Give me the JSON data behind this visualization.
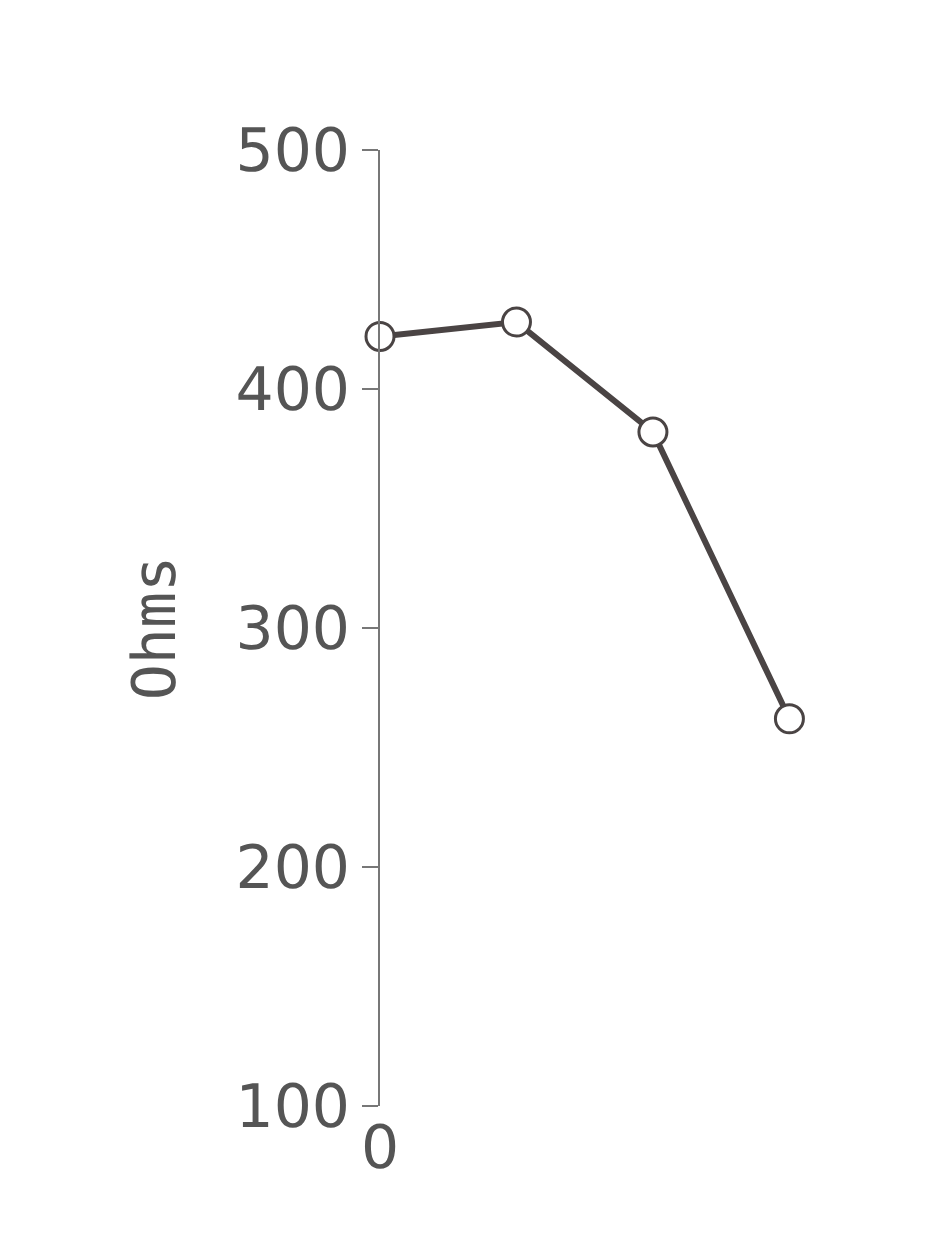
{
  "chart_data": {
    "type": "line",
    "ylabel": "Ohms",
    "categories": [
      "0",
      null,
      null,
      null
    ],
    "series": [
      {
        "color": "#4a4444",
        "values": [
          422,
          428,
          382,
          262
        ]
      }
    ],
    "ylim": [
      100,
      500
    ],
    "yticks": [
      100,
      200,
      300,
      400,
      500
    ],
    "marker": "circle",
    "line_style": "solid",
    "legend": false
  }
}
